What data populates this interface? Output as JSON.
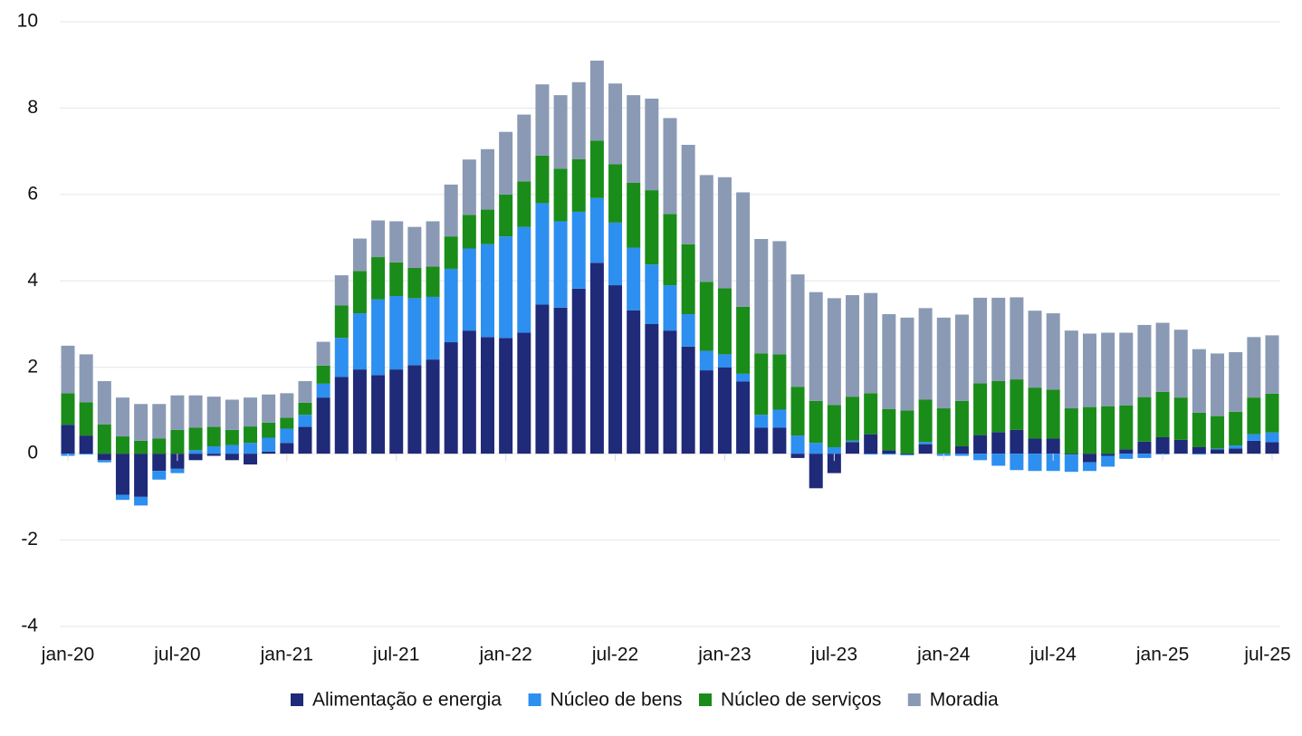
{
  "chart_data": {
    "type": "stacked_bar",
    "categories": [
      "jan-20",
      null,
      null,
      null,
      null,
      null,
      "jul-20",
      null,
      null,
      null,
      null,
      null,
      "jan-21",
      null,
      null,
      null,
      null,
      null,
      "jul-21",
      null,
      null,
      null,
      null,
      null,
      "jan-22",
      null,
      null,
      null,
      null,
      null,
      "jul-22",
      null,
      null,
      null,
      null,
      null,
      "jan-23",
      null,
      null,
      null,
      null,
      null,
      "jul-23",
      null,
      null,
      null,
      null,
      null,
      "jan-24",
      null,
      null,
      null,
      null,
      null,
      "jul-24",
      null,
      null,
      null,
      null,
      null,
      "jan-25",
      null,
      null,
      null,
      null,
      null,
      "jul-25"
    ],
    "series": [
      {
        "name": "Alimentação e energia",
        "color": "#1f2a78",
        "values": [
          0.67,
          0.42,
          -0.15,
          -0.95,
          -1.0,
          -0.4,
          -0.35,
          -0.15,
          -0.05,
          -0.15,
          -0.25,
          0.05,
          0.25,
          0.62,
          1.3,
          1.78,
          1.95,
          1.82,
          1.95,
          2.05,
          2.18,
          2.58,
          2.85,
          2.7,
          2.68,
          2.8,
          3.45,
          3.38,
          3.82,
          4.42,
          3.9,
          3.32,
          3.0,
          2.85,
          2.48,
          1.93,
          2.0,
          1.67,
          0.6,
          0.6,
          -0.1,
          -0.8,
          -0.45,
          0.27,
          0.45,
          0.08,
          -0.02,
          0.22,
          0.0,
          0.17,
          0.43,
          0.5,
          0.55,
          0.35,
          0.35,
          -0.02,
          -0.2,
          -0.05,
          0.1,
          0.28,
          0.38,
          0.32,
          0.15,
          0.1,
          0.12,
          0.3,
          0.27
        ]
      },
      {
        "name": "Núcleo de bens",
        "color": "#2d8ff0",
        "values": [
          -0.05,
          -0.02,
          -0.05,
          -0.12,
          -0.2,
          -0.2,
          -0.1,
          0.08,
          0.17,
          0.2,
          0.25,
          0.32,
          0.33,
          0.28,
          0.32,
          0.9,
          1.3,
          1.75,
          1.7,
          1.55,
          1.45,
          1.7,
          1.9,
          2.15,
          2.35,
          2.45,
          2.35,
          2.0,
          1.78,
          1.5,
          1.45,
          1.45,
          1.38,
          1.05,
          0.75,
          0.45,
          0.3,
          0.18,
          0.3,
          0.42,
          0.42,
          0.25,
          0.15,
          0.03,
          -0.02,
          -0.02,
          -0.02,
          0.05,
          -0.05,
          -0.05,
          -0.15,
          -0.28,
          -0.38,
          -0.4,
          -0.4,
          -0.4,
          -0.2,
          -0.25,
          -0.12,
          -0.1,
          -0.02,
          0.0,
          -0.02,
          0.02,
          0.07,
          0.15,
          0.22
        ]
      },
      {
        "name": "Núcleo de serviços",
        "color": "#1a8c1a",
        "values": [
          0.73,
          0.77,
          0.68,
          0.4,
          0.3,
          0.35,
          0.55,
          0.52,
          0.45,
          0.35,
          0.38,
          0.35,
          0.25,
          0.28,
          0.42,
          0.75,
          0.98,
          0.98,
          0.78,
          0.7,
          0.7,
          0.75,
          0.78,
          0.8,
          0.97,
          1.05,
          1.1,
          1.22,
          1.22,
          1.33,
          1.35,
          1.5,
          1.72,
          1.65,
          1.62,
          1.6,
          1.53,
          1.55,
          1.42,
          1.28,
          1.13,
          0.97,
          0.98,
          1.02,
          0.95,
          0.95,
          1.0,
          0.98,
          1.05,
          1.05,
          1.2,
          1.18,
          1.17,
          1.18,
          1.13,
          1.05,
          1.08,
          1.1,
          1.02,
          1.03,
          1.05,
          0.98,
          0.8,
          0.75,
          0.78,
          0.85,
          0.9
        ]
      },
      {
        "name": "Moradia",
        "color": "#8a9ab4",
        "values": [
          1.1,
          1.11,
          1.0,
          0.9,
          0.85,
          0.8,
          0.8,
          0.75,
          0.7,
          0.7,
          0.67,
          0.65,
          0.57,
          0.5,
          0.55,
          0.7,
          0.75,
          0.85,
          0.95,
          0.95,
          1.05,
          1.2,
          1.28,
          1.4,
          1.45,
          1.55,
          1.65,
          1.7,
          1.78,
          1.85,
          1.87,
          2.03,
          2.12,
          2.22,
          2.3,
          2.47,
          2.57,
          2.65,
          2.65,
          2.62,
          2.6,
          2.52,
          2.47,
          2.35,
          2.32,
          2.2,
          2.15,
          2.12,
          2.1,
          2.0,
          1.98,
          1.93,
          1.9,
          1.78,
          1.77,
          1.8,
          1.7,
          1.7,
          1.68,
          1.67,
          1.6,
          1.57,
          1.47,
          1.45,
          1.38,
          1.4,
          1.35
        ]
      }
    ],
    "ylim": [
      -4,
      10
    ],
    "yticks": [
      -4,
      -2,
      0,
      2,
      4,
      6,
      8,
      10
    ],
    "grid": true,
    "legend": "bottom"
  }
}
